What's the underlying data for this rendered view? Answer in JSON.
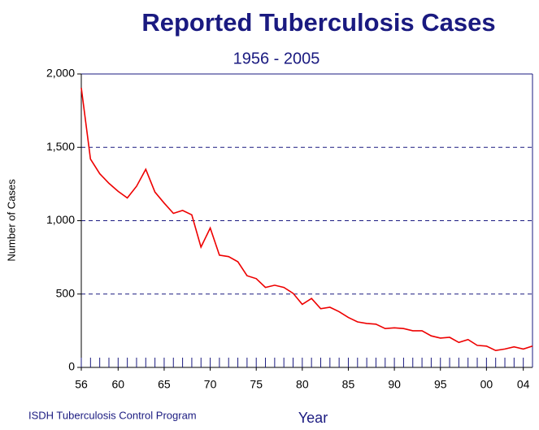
{
  "chart_data": {
    "type": "line",
    "title": "Reported Tuberculosis Cases",
    "subtitle": "1956 - 2005",
    "x_label": "Year",
    "y_label": "Number of Cases",
    "source": "ISDH Tuberculosis Control Program",
    "x": [
      1956,
      1957,
      1958,
      1959,
      1960,
      1961,
      1962,
      1963,
      1964,
      1965,
      1966,
      1967,
      1968,
      1969,
      1970,
      1971,
      1972,
      1973,
      1974,
      1975,
      1976,
      1977,
      1978,
      1979,
      1980,
      1981,
      1982,
      1983,
      1984,
      1985,
      1986,
      1987,
      1988,
      1989,
      1990,
      1991,
      1992,
      1993,
      1994,
      1995,
      1996,
      1997,
      1998,
      1999,
      2000,
      2001,
      2002,
      2003,
      2004,
      2005
    ],
    "series": [
      {
        "name": "Cases",
        "color": "#ee0000",
        "values": [
          1905,
          1420,
          1320,
          1255,
          1200,
          1155,
          1235,
          1350,
          1195,
          1120,
          1050,
          1070,
          1040,
          820,
          950,
          765,
          755,
          720,
          625,
          605,
          545,
          560,
          545,
          505,
          430,
          470,
          400,
          410,
          380,
          340,
          310,
          300,
          295,
          265,
          270,
          265,
          250,
          250,
          215,
          200,
          205,
          170,
          190,
          150,
          145,
          115,
          125,
          140,
          125,
          145
        ]
      }
    ],
    "xlim": [
      1956,
      2005
    ],
    "xticks": [
      {
        "value": 1956,
        "label": "56"
      },
      {
        "value": 1960,
        "label": "60"
      },
      {
        "value": 1965,
        "label": "65"
      },
      {
        "value": 1970,
        "label": "70"
      },
      {
        "value": 1975,
        "label": "75"
      },
      {
        "value": 1980,
        "label": "80"
      },
      {
        "value": 1985,
        "label": "85"
      },
      {
        "value": 1990,
        "label": "90"
      },
      {
        "value": 1995,
        "label": "95"
      },
      {
        "value": 2000,
        "label": "00"
      },
      {
        "value": 2004,
        "label": "04"
      }
    ],
    "ylim": [
      0,
      2000
    ],
    "yticks": [
      0,
      500,
      {
        "value": 1000,
        "label": "1,000"
      },
      {
        "value": 1500,
        "label": "1,500"
      },
      {
        "value": 2000,
        "label": "2,000"
      }
    ],
    "grid": true
  }
}
